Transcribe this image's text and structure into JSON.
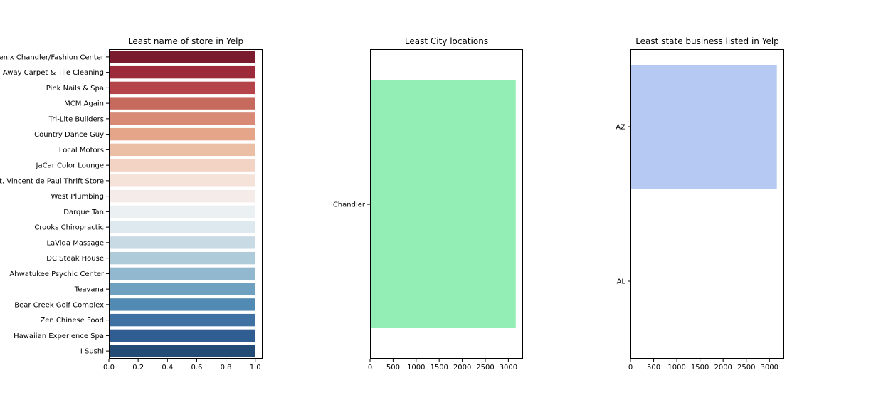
{
  "chart_data": [
    {
      "type": "bar",
      "orientation": "horizontal",
      "title": "Least name of store in Yelp",
      "xlabel": "",
      "ylabel": "",
      "categories": [
        "Phoenix Chandler/Fashion Center",
        "Away Carpet & Tile Cleaning",
        "Pink Nails & Spa",
        "MCM Again",
        "Tri-Lite Builders",
        "Country Dance Guy",
        "Local Motors",
        "JaCar Color Lounge",
        "St. Vincent de Paul Thrift Store",
        "West Plumbing",
        "Darque Tan",
        "Crooks Chiropractic",
        "LaVida Massage",
        "DC Steak House",
        "Ahwatukee Psychic Center",
        "Teavana",
        "Bear Creek Golf Complex",
        "Zen Chinese Food",
        "Hawaiian Experience Spa",
        "I Sushi"
      ],
      "values": [
        1,
        1,
        1,
        1,
        1,
        1,
        1,
        1,
        1,
        1,
        1,
        1,
        1,
        1,
        1,
        1,
        1,
        1,
        1,
        1
      ],
      "colors": [
        "#7a1b2e",
        "#9c2a3a",
        "#b4434a",
        "#c56a5c",
        "#d88a76",
        "#e5a589",
        "#ebbea6",
        "#f3d3c4",
        "#f5e3da",
        "#f5ece9",
        "#ebf0f2",
        "#dde8ef",
        "#c8dbe4",
        "#aecbda",
        "#92b8cf",
        "#6fa0c0",
        "#518ab3",
        "#3f72a2",
        "#305e93",
        "#224b76"
      ],
      "xlim": [
        0,
        1.05
      ],
      "xticks": [
        0,
        0.2,
        0.4,
        0.6,
        0.8,
        1.0
      ],
      "xtick_labels": [
        "0.0",
        "0.2",
        "0.4",
        "0.6",
        "0.8",
        "1.0"
      ]
    },
    {
      "type": "bar",
      "orientation": "horizontal",
      "title": "Least City locations",
      "xlabel": "",
      "ylabel": "",
      "categories": [
        "Chandler"
      ],
      "values": [
        3160
      ],
      "colors": [
        "#92eeb5"
      ],
      "xlim": [
        0,
        3318
      ],
      "xticks": [
        0,
        500,
        1000,
        1500,
        2000,
        2500,
        3000
      ],
      "xtick_labels": [
        "0",
        "500",
        "1000",
        "1500",
        "2000",
        "2500",
        "3000"
      ]
    },
    {
      "type": "bar",
      "orientation": "horizontal",
      "title": "Least state business listed in Yelp",
      "xlabel": "",
      "ylabel": "",
      "categories": [
        "AZ",
        "AL"
      ],
      "values": [
        3160,
        1
      ],
      "colors": [
        "#b5c9f2",
        "#b5c9f2"
      ],
      "xlim": [
        0,
        3318
      ],
      "xticks": [
        0,
        500,
        1000,
        1500,
        2000,
        2500,
        3000
      ],
      "xtick_labels": [
        "0",
        "500",
        "1000",
        "1500",
        "2000",
        "2500",
        "3000"
      ]
    }
  ]
}
